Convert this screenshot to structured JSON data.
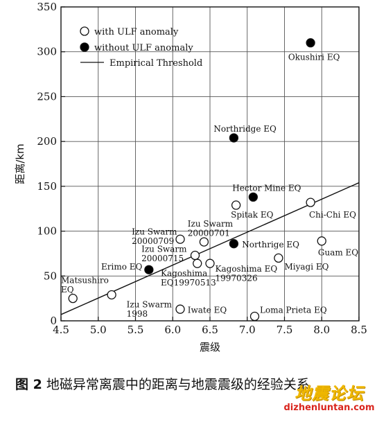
{
  "chart_data": {
    "type": "scatter",
    "xlabel": "震级",
    "ylabel": "距离/km",
    "xlim": [
      4.5,
      8.5
    ],
    "ylim": [
      0,
      350
    ],
    "xticks": [
      "4.5",
      "5.0",
      "5.5",
      "6.0",
      "6.5",
      "7.0",
      "7.5",
      "8.0",
      "8.5"
    ],
    "yticks": [
      "0",
      "50",
      "100",
      "150",
      "200",
      "250",
      "300",
      "350"
    ],
    "grid": true,
    "legend": {
      "placement": "top-left",
      "with_ulf": "with ULF anomaly",
      "without_ulf": "without ULF anomaly",
      "threshold": "Empirical Threshold"
    },
    "threshold_line": {
      "x": [
        4.5,
        8.5
      ],
      "y": [
        7,
        154
      ]
    },
    "series": [
      {
        "name": "with ULF anomaly",
        "marker": "open",
        "points": [
          {
            "x": 4.66,
            "y": 25
          },
          {
            "x": 5.18,
            "y": 29
          },
          {
            "x": 6.1,
            "y": 13
          },
          {
            "x": 6.1,
            "y": 91
          },
          {
            "x": 6.3,
            "y": 73
          },
          {
            "x": 6.33,
            "y": 64
          },
          {
            "x": 6.42,
            "y": 88
          },
          {
            "x": 6.5,
            "y": 64
          },
          {
            "x": 6.85,
            "y": 129
          },
          {
            "x": 7.1,
            "y": 5
          },
          {
            "x": 7.42,
            "y": 70
          },
          {
            "x": 7.85,
            "y": 132
          },
          {
            "x": 8.0,
            "y": 89
          }
        ]
      },
      {
        "name": "without ULF anomaly",
        "marker": "filled",
        "points": [
          {
            "x": 5.68,
            "y": 57
          },
          {
            "x": 6.82,
            "y": 86
          },
          {
            "x": 6.82,
            "y": 204
          },
          {
            "x": 7.08,
            "y": 138
          },
          {
            "x": 7.85,
            "y": 310
          }
        ]
      }
    ],
    "annotations": [
      {
        "lines": [
          "Okushiri EQ"
        ],
        "x": 7.55,
        "y": 291
      },
      {
        "lines": [
          "Northridge EQ"
        ],
        "x": 6.55,
        "y": 211
      },
      {
        "lines": [
          "Hector Mine EQ"
        ],
        "x": 6.8,
        "y": 145
      },
      {
        "lines": [
          "Spitak EQ"
        ],
        "x": 6.78,
        "y": 115
      },
      {
        "lines": [
          "Chi-Chi EQ"
        ],
        "x": 7.83,
        "y": 115
      },
      {
        "lines": [
          "Northrige EQ"
        ],
        "x": 6.93,
        "y": 82
      },
      {
        "lines": [
          "Guam EQ"
        ],
        "x": 7.95,
        "y": 73
      },
      {
        "lines": [
          "Izu Swarm",
          "20000701"
        ],
        "x": 6.2,
        "y": 105
      },
      {
        "lines": [
          "Izu Swarm",
          "20000709"
        ],
        "x": 5.45,
        "y": 96
      },
      {
        "lines": [
          "Izu Swarm",
          "20000715"
        ],
        "x": 5.58,
        "y": 77
      },
      {
        "lines": [
          "Kagoshima EQ",
          "19970326"
        ],
        "x": 6.57,
        "y": 55
      },
      {
        "lines": [
          "Kagoshima",
          "EQ19970513"
        ],
        "x": 5.84,
        "y": 50
      },
      {
        "lines": [
          "Miyagi EQ"
        ],
        "x": 7.5,
        "y": 57
      },
      {
        "lines": [
          "Erimo EQ"
        ],
        "x": 5.04,
        "y": 57
      },
      {
        "lines": [
          "Matsushiro",
          "EQ"
        ],
        "x": 4.5,
        "y": 42
      },
      {
        "lines": [
          "Izu Swarm",
          "1998"
        ],
        "x": 5.38,
        "y": 15
      },
      {
        "lines": [
          "Iwate EQ"
        ],
        "x": 6.2,
        "y": 9
      },
      {
        "lines": [
          "Loma Prieta EQ"
        ],
        "x": 7.17,
        "y": 9
      }
    ]
  },
  "caption": {
    "figure_number": "图 2",
    "text": "地磁异常离震中的距离与地震震级的经验关系"
  },
  "watermark": {
    "site_name": "地震论坛",
    "url": "dizhenluntan.com"
  }
}
